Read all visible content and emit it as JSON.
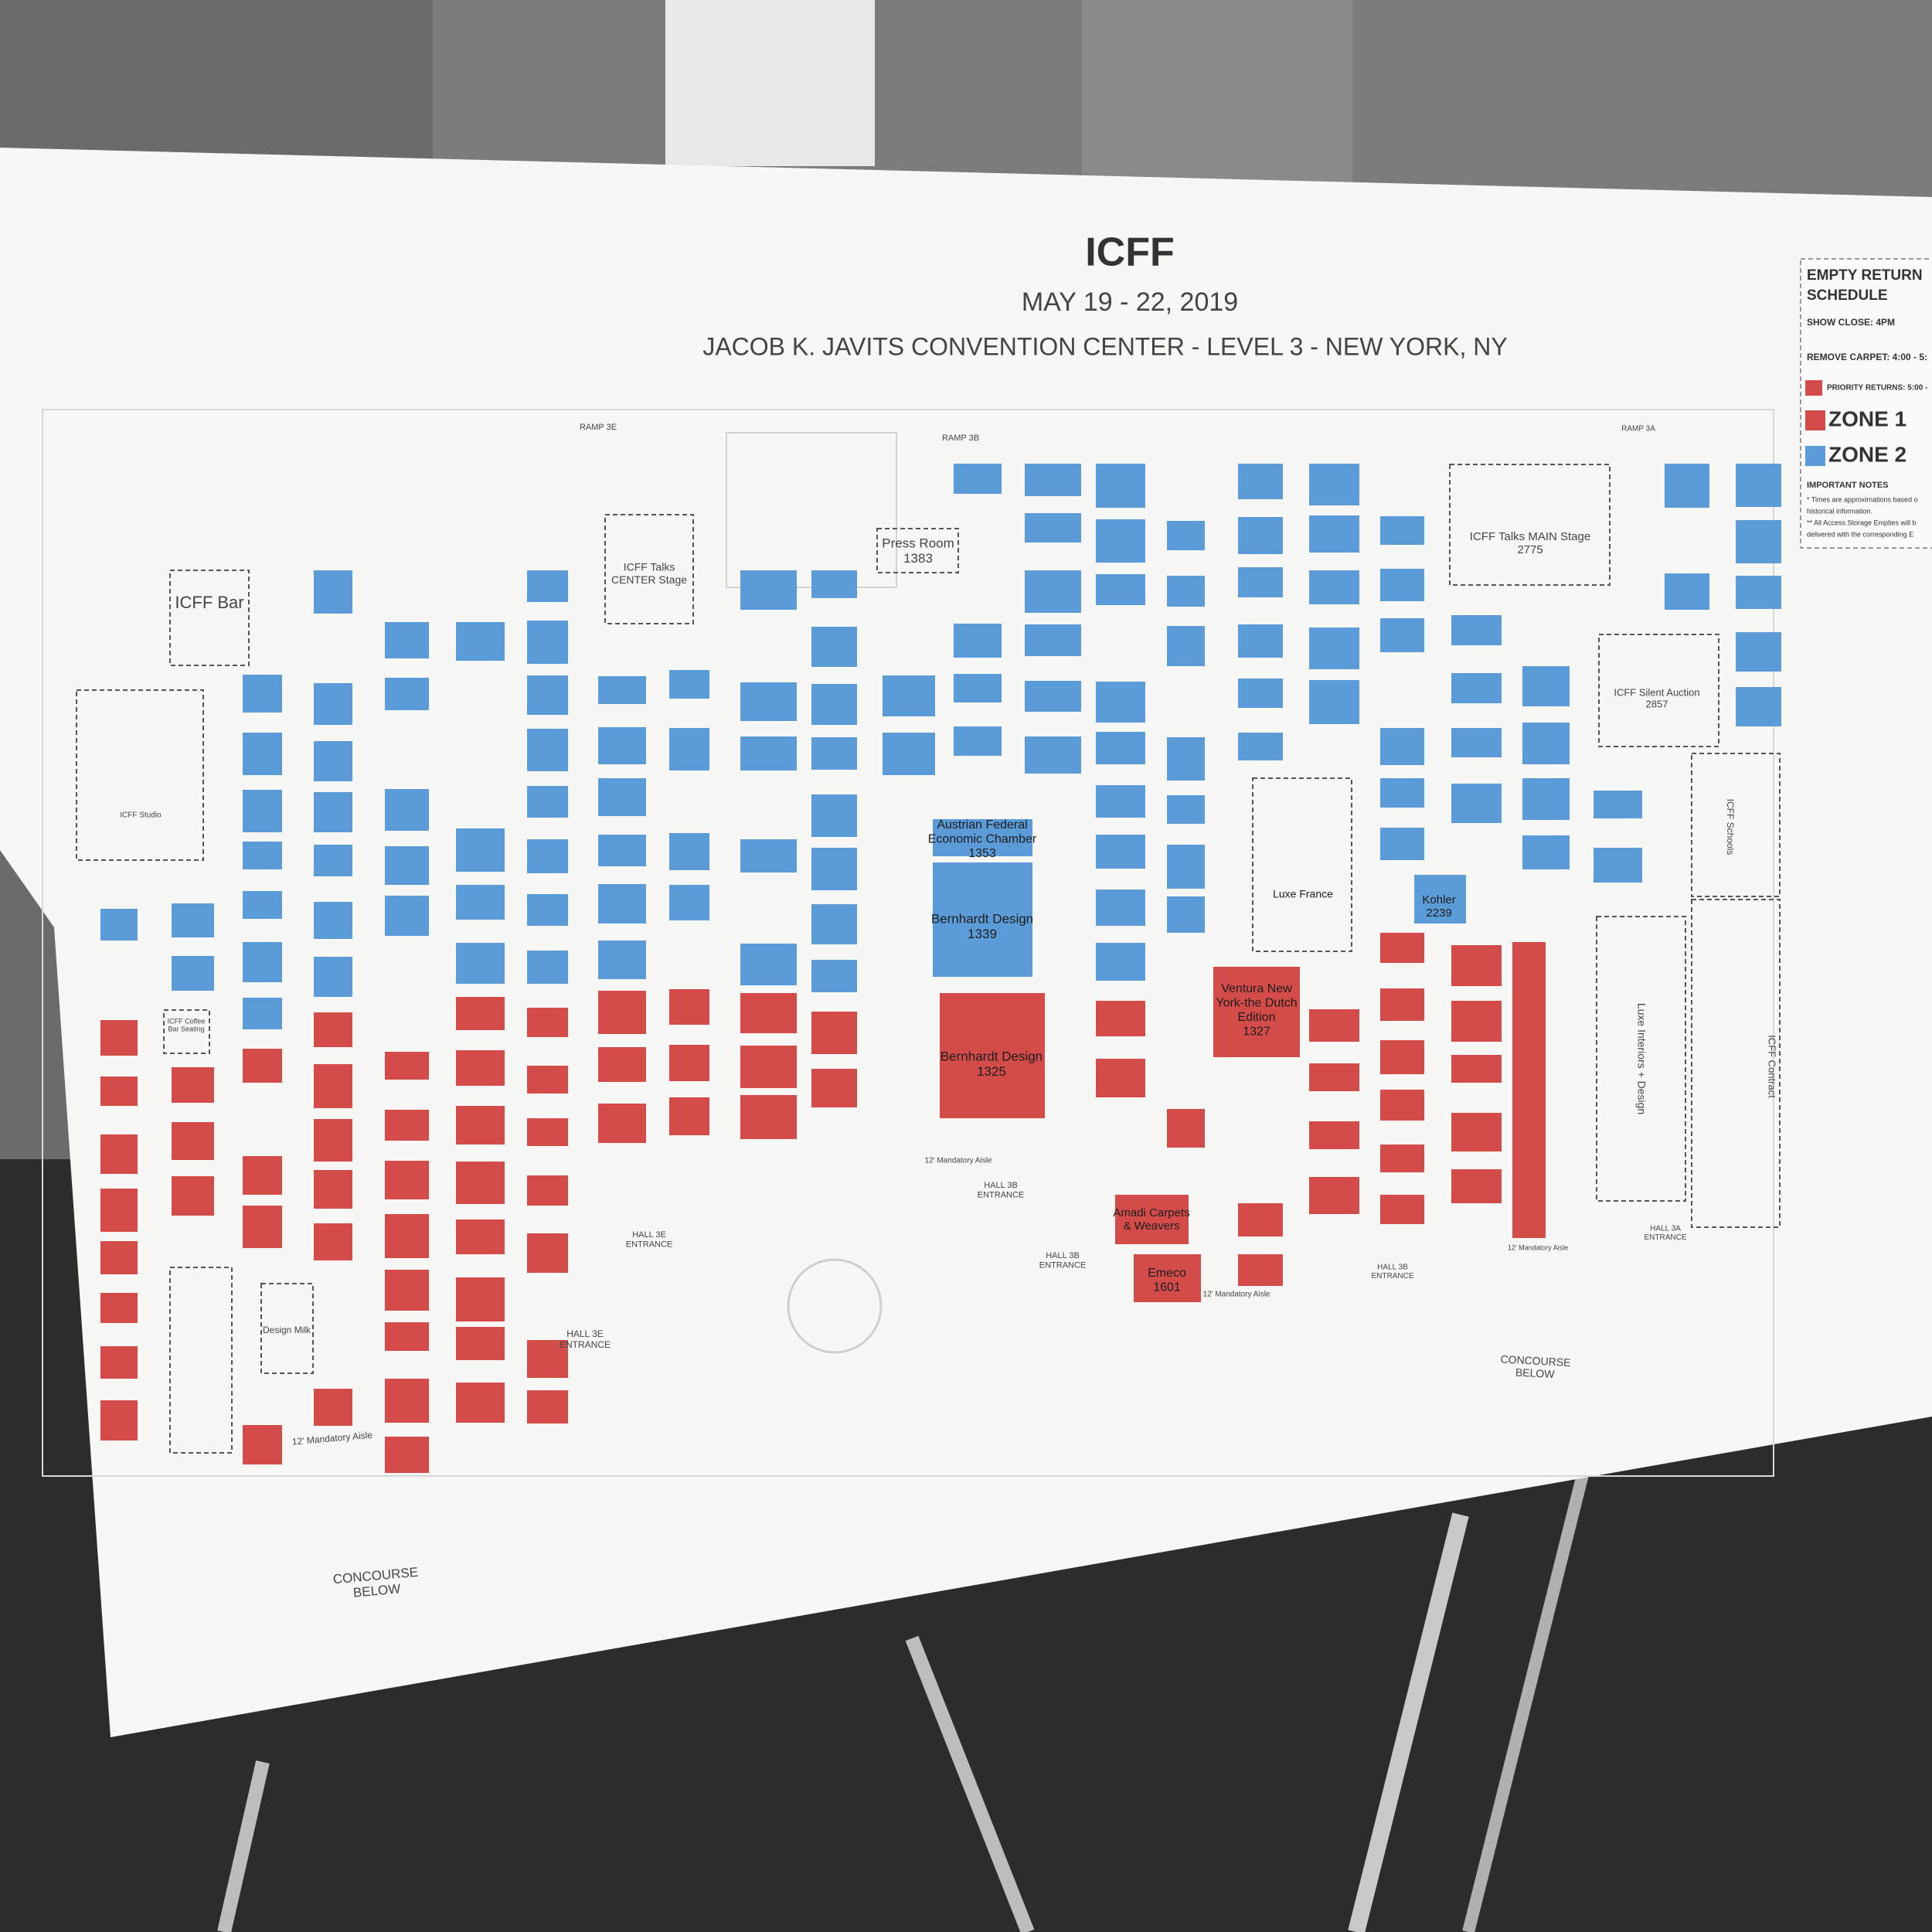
{
  "header": {
    "title": "ICFF",
    "dates": "MAY 19 - 22, 2019",
    "venue": "JACOB K. JAVITS CONVENTION CENTER - LEVEL 3 - NEW YORK, NY"
  },
  "legend": {
    "title_lines": [
      "EMPTY RETURN",
      "SCHEDULE"
    ],
    "show_close": "SHOW CLOSE: 4PM",
    "remove_carpet": "REMOVE CARPET: 4:00 - 5:",
    "priority_returns": "PRIORITY RETURNS: 5:00 -",
    "zones": [
      {
        "name": "ZONE 1",
        "color": "#d44c4a"
      },
      {
        "name": "ZONE 2",
        "color": "#5b9bd8"
      }
    ],
    "notes_title": "IMPORTANT NOTES",
    "notes": [
      "* Times are approximations based o",
      "historical information.",
      "** All Access Storage Empties will b",
      "delivered with the corresponding E"
    ]
  },
  "map": {
    "labels": [
      {
        "lines": [
          "ICFF Bar"
        ]
      },
      {
        "lines": [
          "ICFF Talks",
          "CENTER Stage"
        ]
      },
      {
        "lines": [
          "Press Room"
        ],
        "number": 1383
      },
      {
        "lines": [
          "ICFF Talks MAIN Stage"
        ],
        "number": 2775
      },
      {
        "lines": [
          "ICFF Silent Auction"
        ],
        "number": 2857
      },
      {
        "lines": [
          "Austrian Federal",
          "Economic Chamber"
        ],
        "number": 1353
      },
      {
        "lines": [
          "Bernhardt Design"
        ],
        "number": 1339
      },
      {
        "lines": [
          "Bernhardt Design"
        ],
        "number": 1325
      },
      {
        "lines": [
          "Ventura New",
          "York-the Dutch",
          "Edition"
        ],
        "number": 1327
      },
      {
        "lines": [
          "Luxe France"
        ]
      },
      {
        "lines": [
          "Kohler"
        ],
        "number": 2239
      },
      {
        "lines": [
          "Amadi Carpets",
          "& Weavers"
        ]
      },
      {
        "lines": [
          "Emeco"
        ],
        "number": 1601
      },
      {
        "lines": [
          "Design Milk"
        ]
      },
      {
        "lines": [
          "ICFF Studio"
        ]
      },
      {
        "lines": [
          "ICFF Coffee",
          "Bar Seating"
        ]
      },
      {
        "lines": [
          "Luxe Interiors + Design"
        ]
      },
      {
        "lines": [
          "ICFF Contract"
        ]
      },
      {
        "lines": [
          "ICFF Schools"
        ]
      },
      {
        "lines": [
          "HALL 3E",
          "ENTRANCE"
        ]
      },
      {
        "lines": [
          "HALL 3E",
          "ENTRANCE"
        ]
      },
      {
        "lines": [
          "HALL 3B",
          "ENTRANCE"
        ]
      },
      {
        "lines": [
          "HALL 3B",
          "ENTRANCE"
        ]
      },
      {
        "lines": [
          "HALL 3B",
          "ENTRANCE"
        ]
      },
      {
        "lines": [
          "HALL 3A",
          "ENTRANCE"
        ]
      },
      {
        "lines": [
          "CONCOURSE",
          "BELOW"
        ]
      },
      {
        "lines": [
          "CONCOURSE",
          "BELOW"
        ]
      },
      {
        "lines": [
          "RAMP 3E"
        ]
      },
      {
        "lines": [
          "RAMP 3B"
        ]
      },
      {
        "lines": [
          "RAMP 3A"
        ]
      },
      {
        "lines": [
          "12' Mandatory Aisle"
        ]
      },
      {
        "lines": [
          "12' Mandatory Aisle"
        ]
      },
      {
        "lines": [
          "12' Mandatory Aisle"
        ]
      },
      {
        "lines": [
          "12' Mandatory Aisle"
        ]
      }
    ]
  }
}
